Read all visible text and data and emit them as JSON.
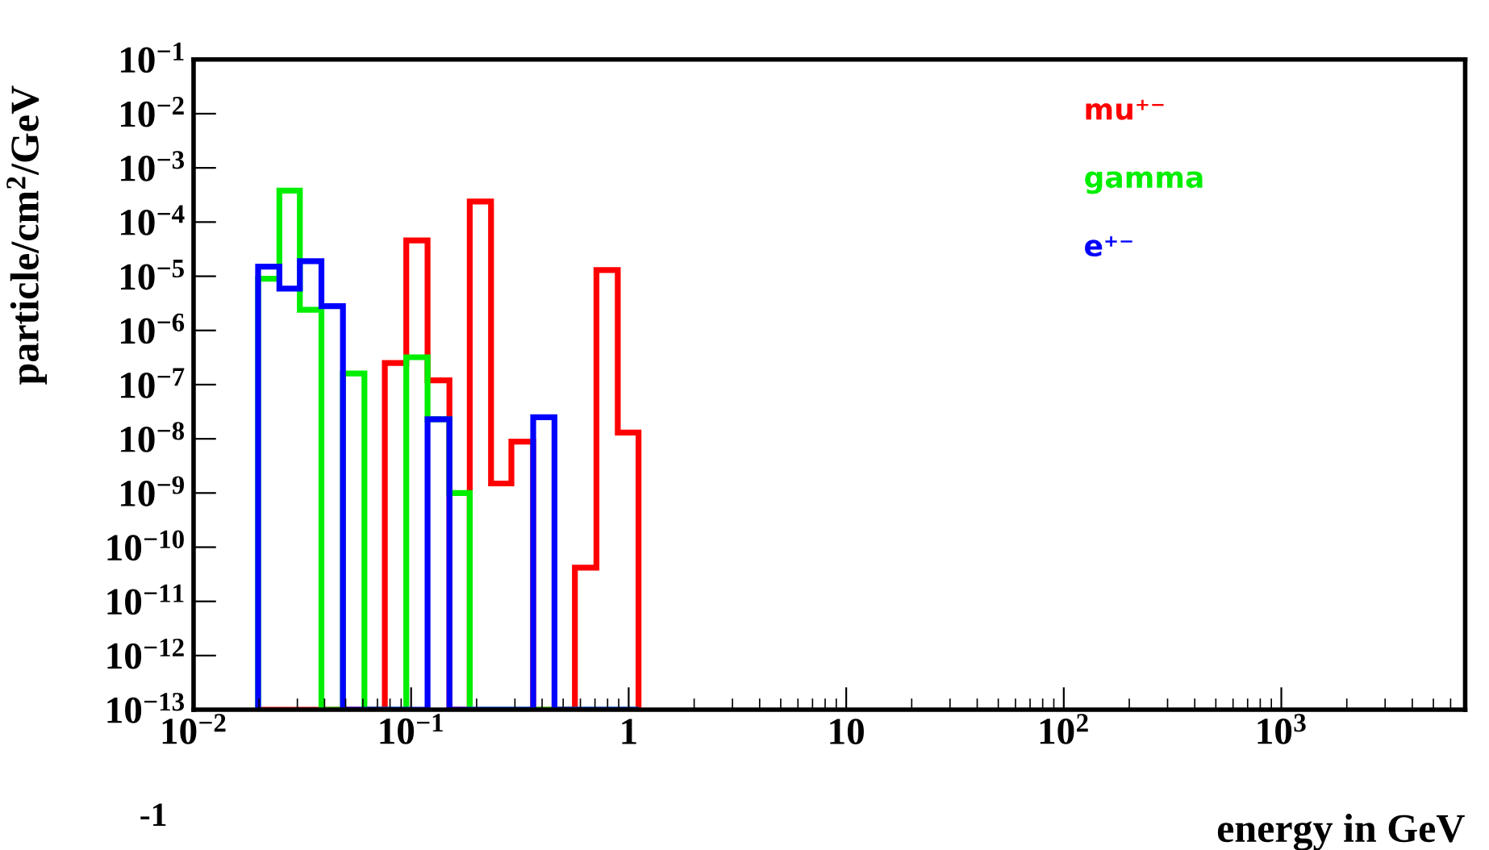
{
  "chart_data": {
    "type": "histogram",
    "xlabel": "energy in GeV",
    "ylabel": "particle/cm$^{2}$/GeV",
    "bins": [
      0.0198,
      0.0248,
      0.0308,
      0.0387,
      0.0486,
      0.061,
      0.0757,
      0.095,
      0.119,
      0.15,
      0.186,
      0.233,
      0.289,
      0.364,
      0.456,
      0.566,
      0.711,
      0.891,
      1.11
    ],
    "series": [
      {
        "name": "mu⁺⁻",
        "color": "#ff0000",
        "values": [
          1e-13,
          1e-13,
          1e-13,
          1e-13,
          1e-13,
          1e-13,
          2.5e-07,
          4.6e-05,
          1.2e-07,
          1e-13,
          0.00024,
          1.5e-09,
          8.9e-09,
          1e-13,
          1e-13,
          4.2e-11,
          1.3e-05,
          1.3e-08
        ]
      },
      {
        "name": "gamma",
        "color": "#00ee00",
        "values": [
          9e-06,
          0.00038,
          2.4e-06,
          1e-13,
          1.6e-07,
          1e-13,
          1e-13,
          3.2e-07,
          2.3e-08,
          1e-09,
          1e-13,
          1e-13,
          1e-13,
          1e-13,
          1e-13,
          1e-13,
          1e-13,
          1e-13
        ]
      },
      {
        "name": "e⁺⁻",
        "color": "#0000ff",
        "values": [
          1.5e-05,
          5.9e-06,
          1.9e-05,
          2.8e-06,
          1e-13,
          1e-13,
          1e-13,
          1e-13,
          2.3e-08,
          1e-13,
          1e-13,
          1e-13,
          1e-13,
          2.5e-08,
          1e-13,
          1e-13,
          1e-13,
          1e-13
        ]
      }
    ],
    "log": "xy",
    "xlim": [
      0.01,
      7000
    ],
    "ylim": [
      1e-13,
      0.1
    ],
    "xticks": [
      {
        "value": 0.01,
        "label": "10$^{−2}$"
      },
      {
        "value": 0.1,
        "label": "10$^{−1}$"
      },
      1,
      10,
      {
        "value": 100,
        "label": "10$^{2}$"
      },
      {
        "value": 1000,
        "label": "10$^{3}$"
      }
    ],
    "yticks": [
      {
        "value": 1e-13,
        "label": "10$^{−13}$"
      },
      {
        "value": 1e-12,
        "label": "10$^{−12}$"
      },
      {
        "value": 1e-11,
        "label": "10$^{−11}$"
      },
      {
        "value": 1e-10,
        "label": "10$^{−10}$"
      },
      {
        "value": 1e-09,
        "label": "10$^{−9}$"
      },
      {
        "value": 1e-08,
        "label": "10$^{−8}$"
      },
      {
        "value": 1e-07,
        "label": "10$^{−7}$"
      },
      {
        "value": 1e-06,
        "label": "10$^{−6}$"
      },
      {
        "value": 1e-05,
        "label": "10$^{−5}$"
      },
      {
        "value": 0.0001,
        "label": "10$^{−4}$"
      },
      {
        "value": 0.001,
        "label": "10$^{−3}$"
      },
      {
        "value": 0.01,
        "label": "10$^{−2}$"
      },
      {
        "value": 0.1,
        "label": "10$^{−1}$"
      }
    ],
    "grid": false,
    "legend": "top right",
    "annotations": [
      "-1"
    ]
  }
}
